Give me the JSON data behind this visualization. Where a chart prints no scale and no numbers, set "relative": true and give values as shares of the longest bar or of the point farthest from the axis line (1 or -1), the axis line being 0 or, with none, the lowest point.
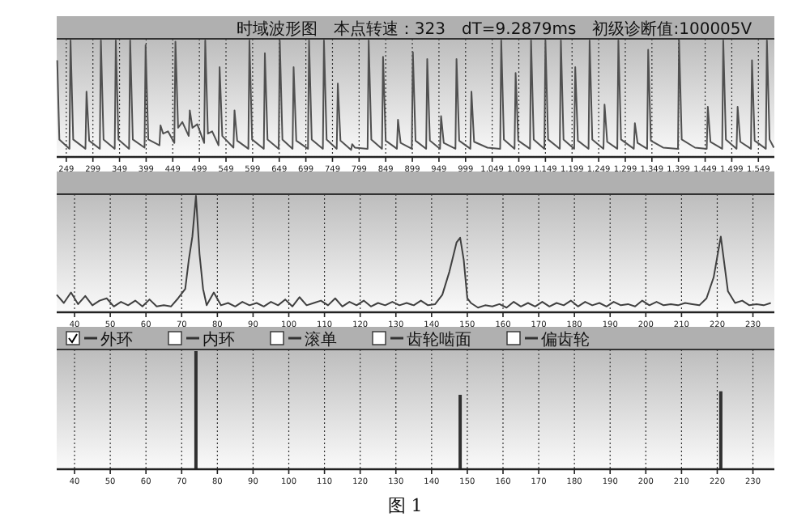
{
  "chart_data": [
    {
      "type": "line",
      "title": "时域波形图　本点转速：323　dT=9.2879ms　初级诊断值:100005V",
      "relative": true,
      "grid": "x",
      "xlim": [
        231,
        1579
      ],
      "xticks": [
        249,
        299,
        349,
        399,
        449,
        499,
        549,
        599,
        649,
        699,
        749,
        799,
        849,
        899,
        949,
        999,
        {
          "value": 1049,
          "label": "1,049"
        },
        {
          "value": 1099,
          "label": "1,099"
        },
        {
          "value": 1149,
          "label": "1,149"
        },
        {
          "value": 1199,
          "label": "1,199"
        },
        {
          "value": 1249,
          "label": "1,249"
        },
        {
          "value": 1299,
          "label": "1,299"
        },
        {
          "value": 1349,
          "label": "1,349"
        },
        {
          "value": 1399,
          "label": "1,399"
        },
        {
          "value": 1449,
          "label": "1,449"
        },
        {
          "value": 1499,
          "label": "1,499"
        },
        {
          "value": 1549,
          "label": "1,549"
        }
      ],
      "series": [
        {
          "color": "#505050",
          "x": [
            232,
            236,
            255,
            257,
            262,
            285,
            287,
            292,
            312,
            314,
            319,
            340,
            342,
            347,
            367,
            369,
            374,
            396,
            398,
            403,
            424,
            426,
            431,
            440,
            452,
            454,
            459,
            467,
            479,
            481,
            486,
            495,
            508,
            510,
            515,
            523,
            535,
            537,
            542,
            563,
            565,
            570,
            591,
            593,
            598,
            620,
            622,
            627,
            648,
            650,
            655,
            674,
            676,
            681,
            703,
            705,
            710,
            731,
            733,
            738,
            757,
            759,
            764,
            784,
            786,
            791,
            815,
            817,
            822,
            842,
            844,
            849,
            870,
            872,
            877,
            898,
            900,
            905,
            925,
            927,
            932,
            951,
            953,
            958,
            980,
            982,
            987,
            1008,
            1010,
            1015,
            1040,
            1064,
            1066,
            1071,
            1091,
            1093,
            1098,
            1120,
            1122,
            1127,
            1147,
            1149,
            1154,
            1176,
            1178,
            1183,
            1203,
            1205,
            1210,
            1230,
            1232,
            1237,
            1258,
            1260,
            1265,
            1284,
            1286,
            1291,
            1315,
            1317,
            1322,
            1340,
            1342,
            1347,
            1370,
            1398,
            1400,
            1405,
            1430,
            1452,
            1454,
            1459,
            1481,
            1483,
            1488,
            1508,
            1510,
            1515,
            1535,
            1537,
            1542,
            1563,
            1565,
            1570,
            1578
          ],
          "values": [
            0.83,
            0.15,
            0.07,
            1,
            0.15,
            0.07,
            0.56,
            0.14,
            0.07,
            1,
            0.15,
            0.07,
            1,
            0.15,
            0.07,
            1,
            0.15,
            0.08,
            0.96,
            0.15,
            0.1,
            0.27,
            0.2,
            0.22,
            0.12,
            0.99,
            0.25,
            0.3,
            0.18,
            0.4,
            0.25,
            0.28,
            0.12,
            1,
            0.2,
            0.22,
            0.1,
            0.77,
            0.18,
            0.08,
            0.4,
            0.14,
            0.07,
            1,
            0.15,
            0.07,
            0.89,
            0.15,
            0.07,
            1,
            0.15,
            0.07,
            0.77,
            0.14,
            0.07,
            1,
            0.15,
            0.07,
            1,
            0.15,
            0.07,
            0.63,
            0.14,
            0.06,
            0.11,
            0.08,
            0.07,
            1,
            0.15,
            0.07,
            0.86,
            0.14,
            0.07,
            0.32,
            0.12,
            0.07,
            0.9,
            0.14,
            0.07,
            0.84,
            0.14,
            0.07,
            0.35,
            0.12,
            0.07,
            0.84,
            0.14,
            0.07,
            0.56,
            0.13,
            0.08,
            0.07,
            1,
            0.15,
            0.07,
            0.72,
            0.14,
            0.07,
            1,
            0.15,
            0.07,
            1,
            0.15,
            0.07,
            1,
            0.15,
            0.07,
            0.77,
            0.14,
            0.07,
            1,
            0.15,
            0.07,
            0.45,
            0.13,
            0.07,
            1,
            0.15,
            0.07,
            0.29,
            0.12,
            0.07,
            0.92,
            0.14,
            0.08,
            0.07,
            1,
            0.15,
            0.08,
            0.07,
            0.43,
            0.13,
            0.07,
            1,
            0.15,
            0.07,
            0.43,
            0.13,
            0.07,
            0.83,
            0.14,
            0.07,
            1,
            0.15,
            0.08
          ]
        }
      ]
    },
    {
      "type": "line",
      "relative": true,
      "grid": "x",
      "xlim": [
        35,
        236
      ],
      "xticks": [
        40,
        50,
        60,
        70,
        80,
        90,
        100,
        110,
        120,
        130,
        140,
        150,
        160,
        170,
        180,
        190,
        200,
        210,
        220,
        230
      ],
      "series": [
        {
          "color": "#404040",
          "x": [
            35,
            37,
            39,
            41,
            43,
            45,
            47,
            49,
            51,
            53,
            55,
            57,
            59,
            61,
            63,
            65,
            67,
            69,
            71,
            72,
            73,
            74,
            75,
            76,
            77,
            79,
            81,
            83,
            85,
            87,
            89,
            91,
            93,
            95,
            97,
            99,
            101,
            103,
            105,
            107,
            109,
            111,
            113,
            115,
            117,
            119,
            121,
            123,
            125,
            127,
            129,
            131,
            133,
            135,
            137,
            139,
            141,
            143,
            145,
            147,
            148,
            149,
            150,
            151,
            153,
            155,
            157,
            159,
            161,
            163,
            165,
            167,
            169,
            171,
            173,
            175,
            177,
            179,
            181,
            183,
            185,
            187,
            189,
            191,
            193,
            195,
            197,
            199,
            201,
            203,
            205,
            207,
            209,
            211,
            213,
            215,
            217,
            219,
            221,
            223,
            225,
            227,
            229,
            231,
            233,
            235
          ],
          "values": [
            0.15,
            0.08,
            0.17,
            0.07,
            0.14,
            0.06,
            0.1,
            0.12,
            0.05,
            0.09,
            0.06,
            0.1,
            0.05,
            0.11,
            0.05,
            0.06,
            0.05,
            0.12,
            0.2,
            0.45,
            0.65,
            1,
            0.5,
            0.2,
            0.06,
            0.17,
            0.06,
            0.08,
            0.05,
            0.09,
            0.06,
            0.08,
            0.05,
            0.09,
            0.06,
            0.11,
            0.05,
            0.13,
            0.06,
            0.08,
            0.1,
            0.06,
            0.12,
            0.05,
            0.09,
            0.06,
            0.1,
            0.05,
            0.08,
            0.06,
            0.09,
            0.06,
            0.08,
            0.06,
            0.1,
            0.06,
            0.07,
            0.15,
            0.35,
            0.6,
            0.64,
            0.45,
            0.12,
            0.08,
            0.04,
            0.06,
            0.05,
            0.07,
            0.04,
            0.09,
            0.05,
            0.08,
            0.05,
            0.09,
            0.05,
            0.08,
            0.06,
            0.1,
            0.05,
            0.09,
            0.06,
            0.08,
            0.05,
            0.09,
            0.06,
            0.07,
            0.05,
            0.1,
            0.06,
            0.09,
            0.06,
            0.07,
            0.06,
            0.08,
            0.07,
            0.06,
            0.12,
            0.3,
            0.65,
            0.18,
            0.08,
            0.1,
            0.06,
            0.07,
            0.06,
            0.08
          ]
        }
      ]
    },
    {
      "type": "bar",
      "relative": true,
      "grid": "x",
      "legend": "top left",
      "xlim": [
        35,
        236
      ],
      "xticks": [
        40,
        50,
        60,
        70,
        80,
        90,
        100,
        110,
        120,
        130,
        140,
        150,
        160,
        170,
        180,
        190,
        200,
        210,
        220,
        230
      ],
      "series": [
        {
          "name": "外环",
          "color": "#303030",
          "x": [
            74,
            148,
            221
          ],
          "values": [
            1,
            0.63,
            0.66
          ]
        }
      ],
      "annotations": [
        "内环",
        "滚单",
        "齿轮啮面",
        "偏齿轮",
        "图 1"
      ]
    }
  ]
}
